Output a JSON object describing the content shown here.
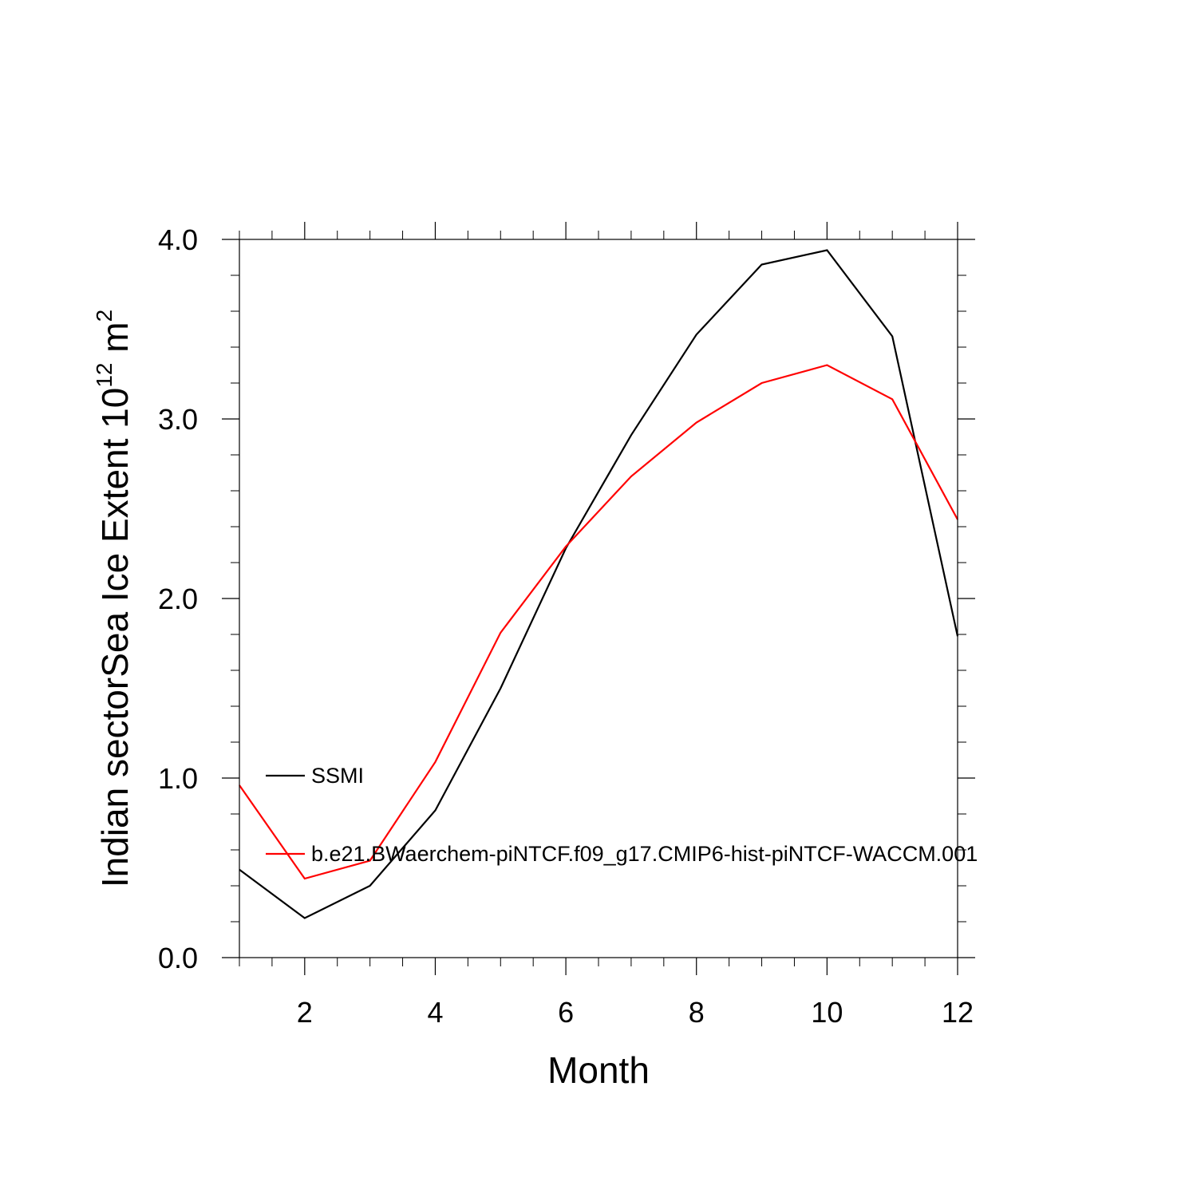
{
  "chart_data": {
    "type": "line",
    "xlabel": "Month",
    "ylabel": {
      "prefix": "Indian sectorSea Ice Extent 10",
      "superscript1": "12",
      "middle": " m",
      "superscript2": "2"
    },
    "xlim": [
      1,
      12
    ],
    "ylim": [
      0.0,
      4.0
    ],
    "x_ticks": [
      2,
      4,
      6,
      8,
      10,
      12
    ],
    "x_tick_labels": [
      "2",
      "4",
      "6",
      "8",
      "10",
      "12"
    ],
    "y_ticks": [
      0.0,
      1.0,
      2.0,
      3.0,
      4.0
    ],
    "y_tick_labels": [
      "0.0",
      "1.0",
      "2.0",
      "3.0",
      "4.0"
    ],
    "grid": false,
    "legend_position": "left, inside",
    "x": [
      1,
      2,
      3,
      4,
      5,
      6,
      7,
      8,
      9,
      10,
      11,
      12
    ],
    "series": [
      {
        "name": "SSMI",
        "color": "#000000",
        "values": [
          0.49,
          0.22,
          0.4,
          0.82,
          1.5,
          2.28,
          2.91,
          3.47,
          3.86,
          3.94,
          3.46,
          1.79
        ]
      },
      {
        "name": "b.e21.BWaerchem-piNTCF.f09_g17.CMIP6-hist-piNTCF-WACCM.001",
        "color": "#ff0000",
        "values": [
          0.96,
          0.44,
          0.54,
          1.09,
          1.81,
          2.29,
          2.68,
          2.98,
          3.2,
          3.3,
          3.11,
          2.44
        ]
      }
    ]
  }
}
